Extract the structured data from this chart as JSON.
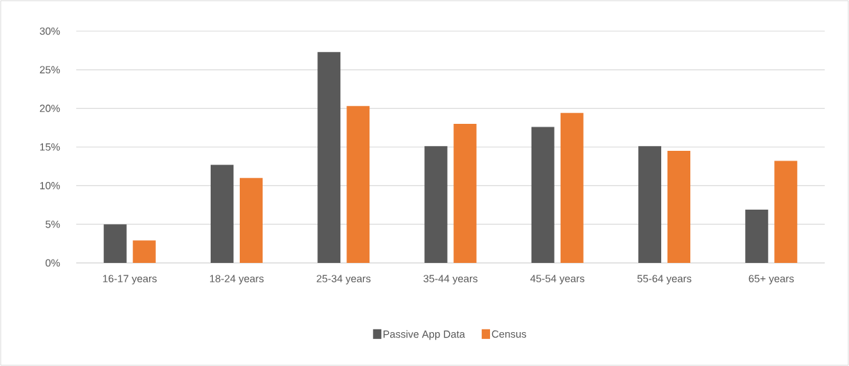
{
  "chart_data": {
    "type": "bar",
    "categories": [
      "16-17 years",
      "18-24 years",
      "25-34 years",
      "35-44 years",
      "45-54 years",
      "55-64 years",
      "65+ years"
    ],
    "series": [
      {
        "name": "Passive App Data",
        "color": "#595959",
        "values": [
          5.0,
          12.7,
          27.3,
          15.1,
          17.6,
          15.1,
          6.9
        ]
      },
      {
        "name": "Census",
        "color": "#ed7d31",
        "values": [
          2.9,
          11.0,
          20.3,
          18.0,
          19.4,
          14.5,
          13.2
        ]
      }
    ],
    "ylim": [
      0,
      30
    ],
    "yticks": [
      {
        "value": 0,
        "label": "0%"
      },
      {
        "value": 5,
        "label": "5%"
      },
      {
        "value": 10,
        "label": "10%"
      },
      {
        "value": 15,
        "label": "15%"
      },
      {
        "value": 20,
        "label": "20%"
      },
      {
        "value": 25,
        "label": "25%"
      },
      {
        "value": 30,
        "label": "30%"
      }
    ],
    "grid": "y",
    "legend": "bottom"
  }
}
